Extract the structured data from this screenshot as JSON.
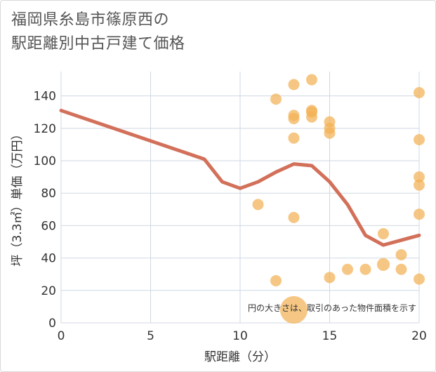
{
  "title_lines": [
    "福岡県糸島市篠原西の",
    "駅距離別中古戸建て価格"
  ],
  "chart_data": {
    "type": "scatter",
    "xlabel": "駅距離（分）",
    "ylabel": "坪（3.3㎡）単価（万円）",
    "xlim": [
      0,
      20
    ],
    "ylim": [
      0,
      155
    ],
    "xticks": [
      0,
      5,
      10,
      15,
      20
    ],
    "yticks": [
      0,
      20,
      40,
      60,
      80,
      100,
      120,
      140
    ],
    "grid": true,
    "annotation": "円の大きさは、取引のあった物件面積を示す",
    "colors": {
      "points": "#f2b155",
      "line": "#d2705a",
      "grid": "#cfd8e3"
    },
    "points": [
      {
        "x": 11,
        "y": 73,
        "s": 1
      },
      {
        "x": 12,
        "y": 138,
        "s": 1
      },
      {
        "x": 12,
        "y": 26,
        "s": 1
      },
      {
        "x": 13,
        "y": 147,
        "s": 1
      },
      {
        "x": 13,
        "y": 128,
        "s": 1
      },
      {
        "x": 13,
        "y": 126,
        "s": 1
      },
      {
        "x": 13,
        "y": 114,
        "s": 1
      },
      {
        "x": 13,
        "y": 65,
        "s": 1
      },
      {
        "x": 13,
        "y": 8,
        "s": 6
      },
      {
        "x": 14,
        "y": 150,
        "s": 1
      },
      {
        "x": 14,
        "y": 131,
        "s": 1
      },
      {
        "x": 14,
        "y": 130,
        "s": 1
      },
      {
        "x": 14,
        "y": 127,
        "s": 1
      },
      {
        "x": 15,
        "y": 124,
        "s": 1
      },
      {
        "x": 15,
        "y": 120,
        "s": 1
      },
      {
        "x": 15,
        "y": 117,
        "s": 1
      },
      {
        "x": 15,
        "y": 28,
        "s": 1
      },
      {
        "x": 16,
        "y": 33,
        "s": 1
      },
      {
        "x": 17,
        "y": 33,
        "s": 1
      },
      {
        "x": 18,
        "y": 55,
        "s": 1
      },
      {
        "x": 18,
        "y": 36,
        "s": 1.3
      },
      {
        "x": 19,
        "y": 42,
        "s": 1
      },
      {
        "x": 19,
        "y": 33,
        "s": 1
      },
      {
        "x": 20,
        "y": 142,
        "s": 1
      },
      {
        "x": 20,
        "y": 113,
        "s": 1
      },
      {
        "x": 20,
        "y": 90,
        "s": 1
      },
      {
        "x": 20,
        "y": 85,
        "s": 1
      },
      {
        "x": 20,
        "y": 67,
        "s": 1
      },
      {
        "x": 20,
        "y": 27,
        "s": 1
      }
    ],
    "trend": {
      "x": [
        0,
        8,
        9,
        10,
        11,
        12,
        13,
        14,
        15,
        16,
        17,
        18,
        19,
        20
      ],
      "y": [
        131,
        101,
        87,
        83,
        87,
        93,
        98,
        97,
        87,
        73,
        54,
        48,
        51,
        54
      ]
    }
  }
}
